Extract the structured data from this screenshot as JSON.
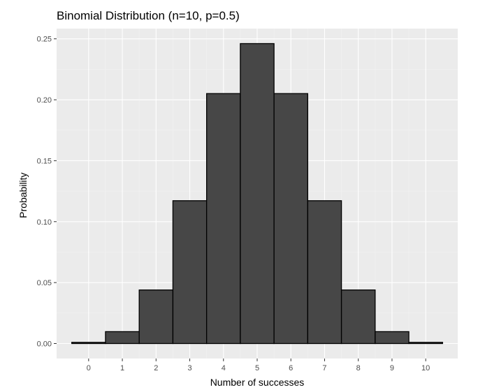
{
  "chart_data": {
    "type": "bar",
    "title": "Binomial Distribution (n=10, p=0.5)",
    "xlabel": "Number of successes",
    "ylabel": "Probability",
    "categories": [
      "0",
      "1",
      "2",
      "3",
      "4",
      "5",
      "6",
      "7",
      "8",
      "9",
      "10"
    ],
    "x": [
      0,
      1,
      2,
      3,
      4,
      5,
      6,
      7,
      8,
      9,
      10
    ],
    "values": [
      0.000977,
      0.009766,
      0.043945,
      0.117188,
      0.205078,
      0.246094,
      0.205078,
      0.117188,
      0.043945,
      0.009766,
      0.000977
    ],
    "xlim": [
      -0.95,
      10.95
    ],
    "ylim": [
      -0.0123,
      0.2584
    ],
    "y_ticks": [
      0.0,
      0.05,
      0.1,
      0.15,
      0.2,
      0.25
    ],
    "y_tick_labels": [
      "0.00",
      "0.05",
      "0.10",
      "0.15",
      "0.20",
      "0.25"
    ],
    "bar_width": 1.0,
    "grid": true,
    "legend": "none",
    "colors": {
      "bar_fill": "#474747",
      "bar_outline": "#000000",
      "panel_background": "#ebebeb",
      "grid_major": "#ffffff",
      "grid_minor": "#f2f2f2",
      "tick_text": "#4d4d4d",
      "tick_mark": "#333333"
    }
  }
}
